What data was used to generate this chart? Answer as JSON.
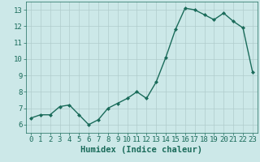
{
  "xlabel": "Humidex (Indice chaleur)",
  "x_values": [
    0,
    1,
    2,
    3,
    4,
    5,
    6,
    7,
    8,
    9,
    10,
    11,
    12,
    13,
    14,
    15,
    16,
    17,
    18,
    19,
    20,
    21,
    22,
    23
  ],
  "y_values": [
    6.4,
    6.6,
    6.6,
    7.1,
    7.2,
    6.6,
    6.0,
    6.3,
    7.0,
    7.3,
    7.6,
    8.0,
    7.6,
    8.6,
    10.1,
    11.8,
    13.1,
    13.0,
    12.7,
    12.4,
    12.8,
    12.3,
    11.9,
    9.2
  ],
  "line_color": "#1a6b5a",
  "marker_color": "#1a6b5a",
  "bg_color": "#cce8e8",
  "grid_color": "#b0cccc",
  "ylim": [
    5.5,
    13.5
  ],
  "xlim": [
    -0.5,
    23.5
  ],
  "yticks": [
    6,
    7,
    8,
    9,
    10,
    11,
    12,
    13
  ],
  "xticks": [
    0,
    1,
    2,
    3,
    4,
    5,
    6,
    7,
    8,
    9,
    10,
    11,
    12,
    13,
    14,
    15,
    16,
    17,
    18,
    19,
    20,
    21,
    22,
    23
  ],
  "tick_label_fontsize": 6.5,
  "xlabel_fontsize": 7.5,
  "line_width": 1.0,
  "marker_size": 2.0
}
